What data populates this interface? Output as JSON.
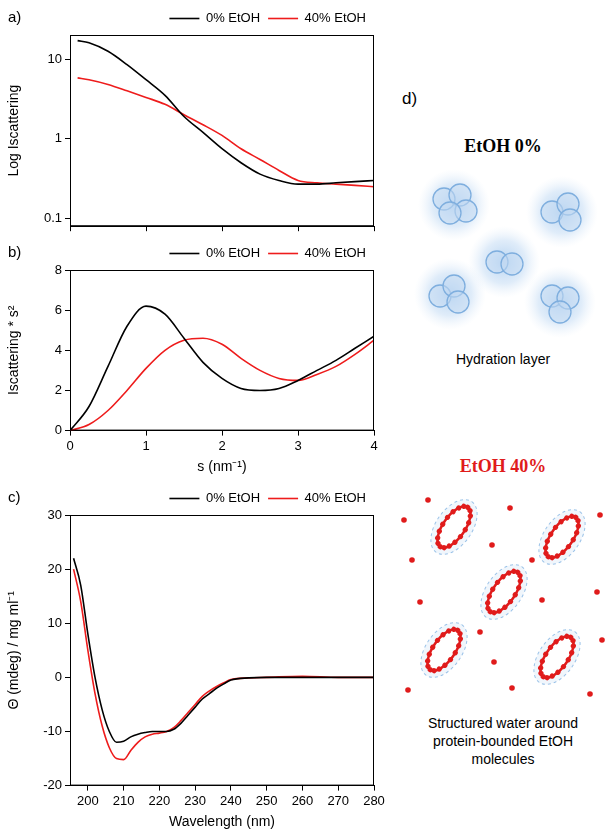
{
  "chart_data": [
    {
      "type": "line",
      "title": "a)",
      "y_label": "Log Iscattering",
      "log": "y",
      "xlim": [
        0,
        4
      ],
      "xticks": [
        0,
        1,
        2,
        3,
        4
      ],
      "ylim": [
        0.08,
        20
      ],
      "yticks": [
        0.1,
        1,
        10
      ],
      "tick_labels": "y",
      "grid": false,
      "legend": "top",
      "series": [
        {
          "name": "0% EtOH",
          "color": "#000000",
          "x": [
            0.1,
            0.25,
            0.5,
            0.75,
            1,
            1.25,
            1.5,
            1.75,
            2,
            2.25,
            2.5,
            2.75,
            3,
            3.25,
            3.5,
            3.75,
            4
          ],
          "values": [
            17,
            16,
            12.5,
            8.5,
            5.5,
            3.5,
            1.9,
            1.2,
            0.75,
            0.5,
            0.36,
            0.3,
            0.27,
            0.27,
            0.28,
            0.29,
            0.3
          ]
        },
        {
          "name": "40% EtOH",
          "color": "#ee1c1c",
          "x": [
            0.1,
            0.25,
            0.5,
            0.75,
            1,
            1.25,
            1.5,
            1.75,
            2,
            2.25,
            2.5,
            2.75,
            3,
            3.25,
            3.5,
            3.75,
            4
          ],
          "values": [
            5.8,
            5.5,
            4.8,
            4,
            3.3,
            2.7,
            2.0,
            1.5,
            1.1,
            0.75,
            0.55,
            0.4,
            0.3,
            0.28,
            0.27,
            0.26,
            0.25
          ]
        }
      ]
    },
    {
      "type": "line",
      "title": "b)",
      "x_label": "s (nm⁻¹)",
      "y_label": "Iscattering * s²",
      "xlim": [
        0,
        4
      ],
      "xticks": [
        0,
        1,
        2,
        3,
        4
      ],
      "ylim": [
        0,
        8
      ],
      "yticks": [
        0,
        2,
        4,
        6,
        8
      ],
      "grid": false,
      "legend": "top",
      "series": [
        {
          "name": "0% EtOH",
          "color": "#000000",
          "x": [
            0,
            0.25,
            0.5,
            0.75,
            1,
            1.25,
            1.5,
            1.75,
            2,
            2.25,
            2.5,
            2.75,
            3,
            3.25,
            3.5,
            3.75,
            4
          ],
          "values": [
            0,
            1.2,
            3.2,
            5.2,
            6.2,
            5.8,
            4.6,
            3.4,
            2.6,
            2.1,
            2.0,
            2.1,
            2.5,
            3.0,
            3.5,
            4.1,
            4.7
          ]
        },
        {
          "name": "40% EtOH",
          "color": "#ee1c1c",
          "x": [
            0,
            0.25,
            0.5,
            0.75,
            1,
            1.25,
            1.5,
            1.75,
            2,
            2.25,
            2.5,
            2.75,
            3,
            3.25,
            3.5,
            3.75,
            4
          ],
          "values": [
            0,
            0.3,
            1.0,
            2.0,
            3.1,
            4.0,
            4.5,
            4.6,
            4.3,
            3.6,
            3.0,
            2.6,
            2.5,
            2.8,
            3.2,
            3.8,
            4.5
          ]
        }
      ]
    },
    {
      "type": "line",
      "title": "c)",
      "x_label": "Wavelength (nm)",
      "y_label": "Θ (mdeg) / mg ml⁻¹",
      "xlim": [
        195,
        280
      ],
      "xticks": [
        200,
        210,
        220,
        230,
        240,
        250,
        260,
        270,
        280
      ],
      "ylim": [
        -20,
        30
      ],
      "yticks": [
        -20,
        -10,
        0,
        10,
        20,
        30
      ],
      "grid": false,
      "legend": "top",
      "series": [
        {
          "name": "0% EtOH",
          "color": "#000000",
          "x": [
            196,
            198,
            200,
            202,
            204,
            206,
            208,
            210,
            212,
            214,
            216,
            218,
            220,
            222,
            224,
            226,
            228,
            230,
            232,
            234,
            236,
            238,
            240,
            245,
            250,
            260,
            270,
            280
          ],
          "values": [
            22,
            17,
            8,
            0,
            -6,
            -10,
            -12,
            -11.8,
            -11,
            -10.5,
            -10.2,
            -10,
            -10,
            -10,
            -9.6,
            -8.5,
            -7,
            -5.5,
            -4,
            -3,
            -2,
            -1.2,
            -0.5,
            -0.1,
            0,
            0,
            0,
            0
          ]
        },
        {
          "name": "40% EtOH",
          "color": "#ee1c1c",
          "x": [
            196,
            198,
            200,
            202,
            204,
            206,
            208,
            210,
            212,
            214,
            216,
            218,
            220,
            222,
            224,
            226,
            228,
            230,
            232,
            234,
            236,
            238,
            240,
            245,
            250,
            260,
            270,
            280
          ],
          "values": [
            20,
            14,
            5,
            -3,
            -9,
            -13,
            -15,
            -15.2,
            -13.5,
            -12,
            -11,
            -10.5,
            -10.3,
            -10,
            -9.3,
            -8,
            -6.5,
            -5,
            -3.5,
            -2.5,
            -1.7,
            -1,
            -0.4,
            -0.1,
            0,
            0.2,
            0,
            0
          ]
        }
      ]
    }
  ],
  "diagram": {
    "label": "d)",
    "panels": [
      {
        "title": "EtOH 0%",
        "caption": "Hydration layer"
      },
      {
        "title": "EtOH 40%",
        "caption": "Structured water around protein-bounded EtOH molecules"
      }
    ]
  }
}
